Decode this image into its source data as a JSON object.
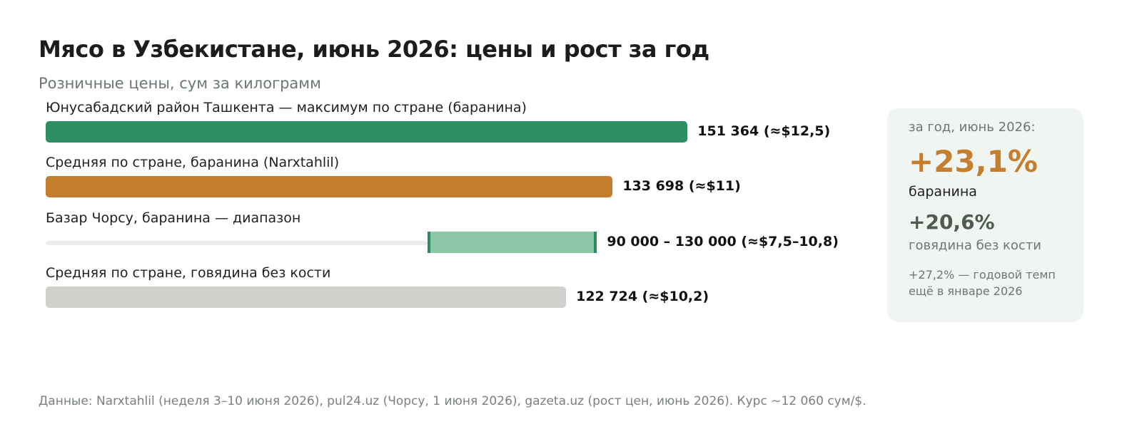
{
  "title": "Мясо в Узбекистане, июнь 2026: цены и рост за год",
  "subtitle": "Розничные цены, сум за килограмм",
  "chart_data": {
    "type": "bar",
    "orientation": "horizontal",
    "unit": "сум за килограмм",
    "xlim": [
      0,
      170000
    ],
    "grid": false,
    "rows": [
      {
        "label": "Юнусабадский район Ташкента — максимум по стране (баранина)",
        "value": 151364,
        "value_label": "151 364 (≈$12,5)",
        "color": "#2e8f63"
      },
      {
        "label": "Средняя по стране, баранина (Narxtahlil)",
        "value": 133698,
        "value_label": "133 698 (≈$11)",
        "color": "#c27e2c"
      },
      {
        "label": "Базар Чорсу, баранина — диапазон",
        "range": [
          90000,
          130000
        ],
        "value_label": "90 000 – 130 000 (≈$7,5–10,8)",
        "color": "#8ec8a8",
        "edge_color": "#2e8a5f"
      },
      {
        "label": "Средняя по стране, говядина без кости",
        "value": 122724,
        "value_label": "122 724 (≈$10,2)",
        "color": "#cfd1cd"
      }
    ]
  },
  "card": {
    "period": "за год, июнь 2026:",
    "lamb_growth": "+23,1%",
    "lamb_label": "баранина",
    "beef_growth": "+20,6%",
    "beef_label": "говядина без кости",
    "note": "+27,2% — годовой темп ещё в январе 2026",
    "accent_color": "#c57e2e"
  },
  "source": "Данные: Narxtahlil (неделя 3–10 июня 2026), pul24.uz (Чорсу, 1 июня 2026), gazeta.uz (рост цен, июнь 2026). Курс ~12 060 сум/$."
}
